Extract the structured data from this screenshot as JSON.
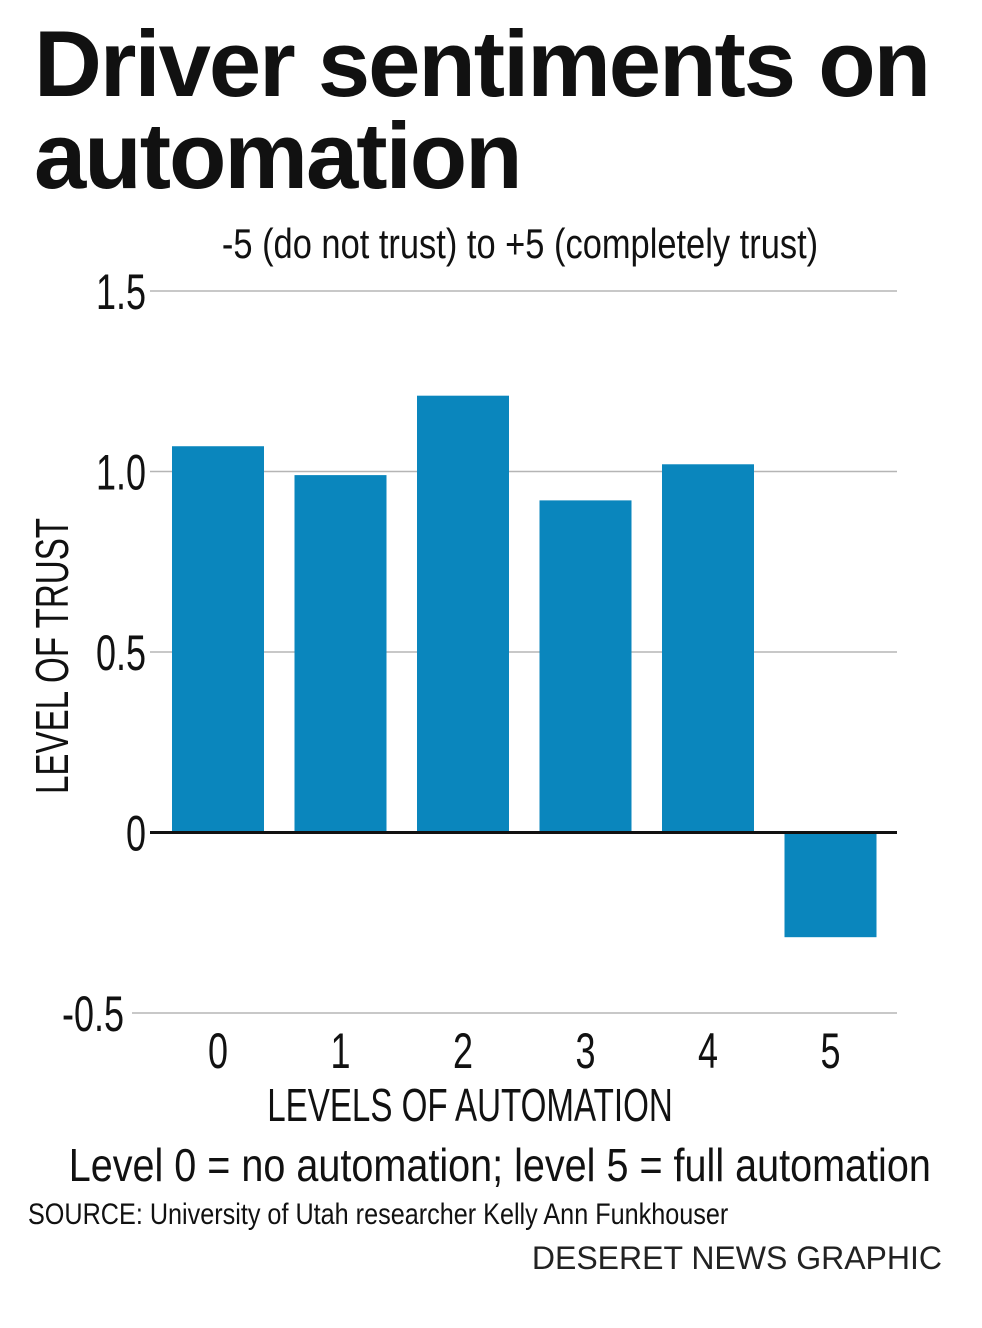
{
  "chart_data": {
    "type": "bar",
    "title": "Driver sentiments on automation",
    "subtitle": "-5 (do not trust) to +5 (completely trust)",
    "xlabel": "LEVELS OF AUTOMATION",
    "ylabel": "LEVEL OF TRUST",
    "categories": [
      "0",
      "1",
      "2",
      "3",
      "4",
      "5"
    ],
    "values": [
      1.07,
      0.99,
      1.21,
      0.92,
      1.02,
      -0.29
    ],
    "yticks": [
      "1.5",
      "1.0",
      "0.5",
      "0",
      "-0.5"
    ],
    "ytick_values": [
      1.5,
      1.0,
      0.5,
      0,
      -0.5
    ],
    "ylim": [
      -0.5,
      1.5
    ],
    "grid": true,
    "bar_color": "#0a86bd",
    "note": "Level 0 = no automation; level 5 = full automation",
    "source": "SOURCE: University of Utah researcher Kelly Ann Funkhouser",
    "credit": "DESERET NEWS GRAPHIC"
  }
}
